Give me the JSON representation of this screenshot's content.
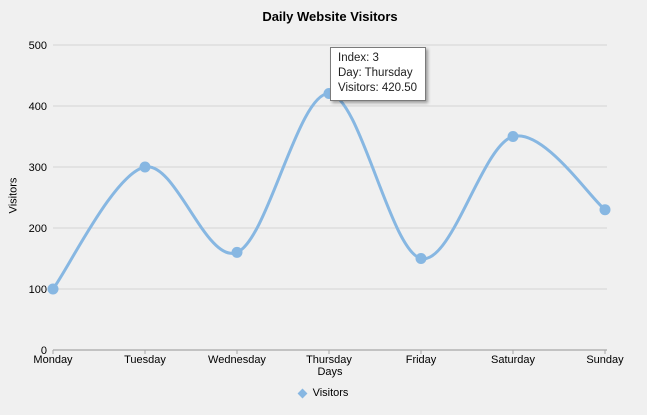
{
  "chart_data": {
    "type": "line",
    "smooth": true,
    "title": "Daily Website Visitors",
    "xlabel": "Days",
    "ylabel": "Visitors",
    "categories": [
      "Monday",
      "Tuesday",
      "Wednesday",
      "Thursday",
      "Friday",
      "Saturday",
      "Sunday"
    ],
    "series": [
      {
        "name": "Visitors",
        "values": [
          100,
          300,
          160,
          420.5,
          150,
          350,
          230
        ],
        "color": "#87b7e2",
        "marker": "circle"
      }
    ],
    "ylim": [
      0,
      500
    ],
    "yticks": [
      0,
      100,
      200,
      300,
      400,
      500
    ],
    "grid": true,
    "legend_position": "bottom-center"
  },
  "tooltip": {
    "lines": [
      "Index: 3",
      "Day: Thursday",
      "Visitors: 420.50"
    ]
  },
  "colors": {
    "background": "#f0f0f0",
    "gridline": "#d4d4d4",
    "axis": "#a6a6a6",
    "series": "#87b7e2",
    "text": "#000000",
    "tooltip_bg": "#ffffff",
    "tooltip_border": "#7b7b7b"
  }
}
